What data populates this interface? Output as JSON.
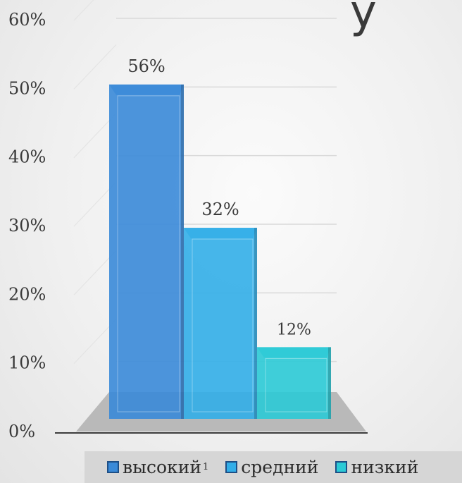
{
  "title_fragment": "y",
  "chart_data": {
    "type": "bar",
    "categories": [
      "высокий",
      "средний",
      "низкий"
    ],
    "values": [
      56,
      32,
      12
    ],
    "data_labels": [
      "56%",
      "32%",
      "12%"
    ],
    "colors": [
      "#3a8ad8",
      "#32aee8",
      "#2bcad6"
    ],
    "ylim": [
      0,
      60
    ],
    "yticks": [
      "0%",
      "10%",
      "20%",
      "30%",
      "40%",
      "50%",
      "60%"
    ],
    "grid": true,
    "legend_position": "bottom",
    "legend_superscript": "1"
  }
}
